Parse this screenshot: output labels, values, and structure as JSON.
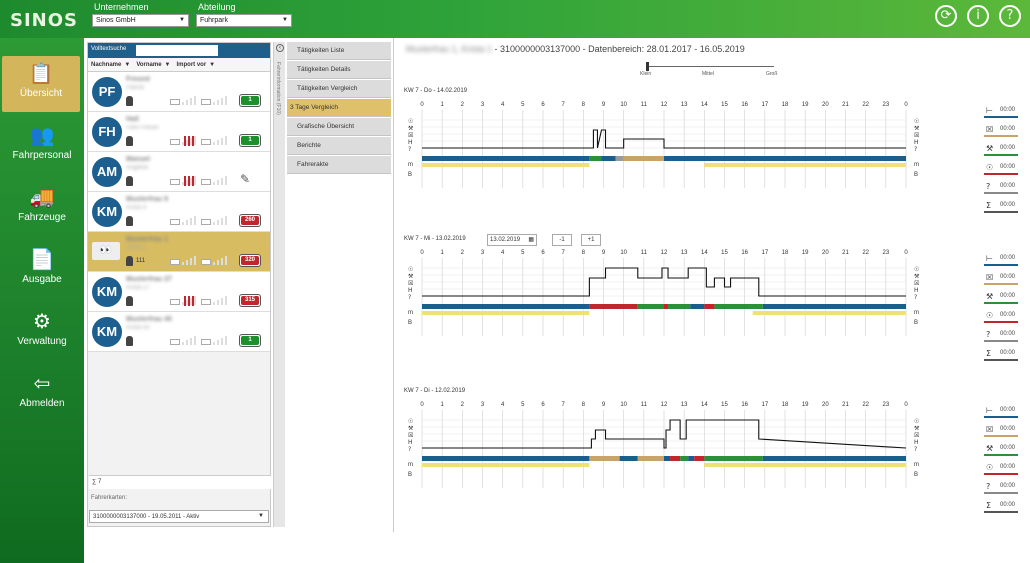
{
  "brand": {
    "logo": "SINOS"
  },
  "topbar": {
    "company_label": "Unternehmen",
    "company_value": "Sinos GmbH",
    "dept_label": "Abteilung",
    "dept_value": "Fuhrpark",
    "icons": [
      "sync-icon",
      "info-icon",
      "help-icon"
    ],
    "info_glyph": "i",
    "help_glyph": "?"
  },
  "sidebar": {
    "items": [
      {
        "label": "Übersicht",
        "icon": "checklist-icon"
      },
      {
        "label": "Fahrpersonal",
        "icon": "people-icon"
      },
      {
        "label": "Fahrzeuge",
        "icon": "truck-icon"
      },
      {
        "label": "Ausgabe",
        "icon": "document-icon"
      },
      {
        "label": "Verwaltung",
        "icon": "gears-icon"
      },
      {
        "label": "Abmelden",
        "icon": "logout-icon"
      }
    ]
  },
  "driverlist": {
    "search_label": "Volltextsuche",
    "columns": [
      "Nachname",
      "Vorname",
      "Import vor"
    ],
    "rows": [
      {
        "initials": "PF",
        "name": "Freund",
        "first": "Patrick",
        "badge": "1",
        "badge_color": "#1d8f2c"
      },
      {
        "initials": "FH",
        "name": "Hall",
        "first": "Felix Florian",
        "badge": "1",
        "badge_color": "#1d8f2c"
      },
      {
        "initials": "AM",
        "name": "Manuel",
        "first": "Angebot",
        "badge": "",
        "badge_color": ""
      },
      {
        "initials": "KM",
        "name": "Musterfrau 9",
        "first": "Krista 9",
        "badge": "260",
        "badge_color": "#c0262d"
      },
      {
        "initials": "",
        "name": "Musterfrau 1",
        "first": "Krista 1",
        "badge": "320",
        "badge_color": "#c0262d"
      },
      {
        "initials": "KM",
        "name": "Musterfrau 27",
        "first": "Krista 27",
        "badge": "315",
        "badge_color": "#c0262d"
      },
      {
        "initials": "KM",
        "name": "Musterfrau 40",
        "first": "Krista 40",
        "badge": "1",
        "badge_color": "#1d8f2c"
      }
    ],
    "sel_count": "111",
    "sum": "∑ 7",
    "card_label": "Fahrerkarten:",
    "card_value": "3100000003137000 - 19.05.2011 - Aktiv"
  },
  "splitter": {
    "label": "Fahrerinformation (F10)"
  },
  "tabs": [
    "Tätigkeiten Liste",
    "Tätigkeiten Details",
    "Tätigkeiten Vergleich",
    "3 Tage Vergleich",
    "Grafische Übersicht",
    "Berichte",
    "Fahrerakte"
  ],
  "main": {
    "title_name": "Musterfrau 1, Krista 1",
    "title_rest": " - 3100000003137000 - Datenbereich: 28.01.2017 - 16.05.2019",
    "slider_labels": [
      "Klein",
      "Mittel",
      "Groß"
    ],
    "hours": [
      "0",
      "1",
      "2",
      "3",
      "4",
      "5",
      "6",
      "7",
      "8",
      "9",
      "10",
      "11",
      "12",
      "13",
      "14",
      "15",
      "16",
      "17",
      "18",
      "19",
      "20",
      "21",
      "22",
      "23",
      "0"
    ],
    "row_labels": [
      "☉",
      "⚒",
      "☒",
      "H",
      "?"
    ],
    "m_label": "m",
    "b_label": "B",
    "days": [
      {
        "label": "KW 7 - Do - 14.02.2019",
        "date_input": "",
        "btn_prev": "",
        "btn_next": ""
      },
      {
        "label": "KW 7 - Mi - 13.02.2019",
        "date_input": "13.02.2019",
        "btn_prev": "-1",
        "btn_next": "+1"
      },
      {
        "label": "KW 7 - Di - 12.02.2019",
        "date_input": "",
        "btn_prev": "",
        "btn_next": ""
      }
    ],
    "legend": [
      {
        "icon": "bed-icon",
        "glyph": "⊢",
        "time": "00:00",
        "color": "#1b5e8c"
      },
      {
        "icon": "box-icon",
        "glyph": "☒",
        "time": "00:00",
        "color": "#c9a46a"
      },
      {
        "icon": "tools-icon",
        "glyph": "⚒",
        "time": "00:00",
        "color": "#2c8f3a"
      },
      {
        "icon": "steering-icon",
        "glyph": "☉",
        "time": "00:00",
        "color": "#c0262d"
      },
      {
        "icon": "unknown-icon",
        "glyph": "?",
        "time": "00:00",
        "color": "#888888"
      },
      {
        "icon": "sum-icon",
        "glyph": "Σ",
        "time": "00:00",
        "color": "#555555"
      }
    ]
  },
  "colors": {
    "accent": "#d7bc62",
    "primary": "#1d5f8f",
    "green": "#2fa33a"
  }
}
